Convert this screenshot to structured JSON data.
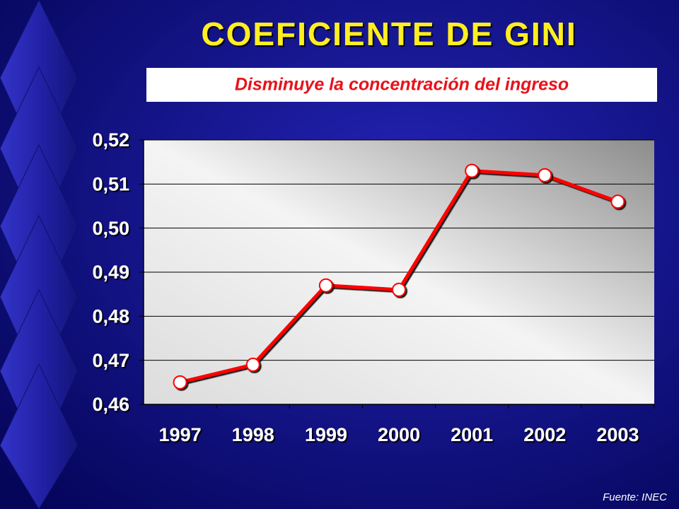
{
  "chart_data": {
    "type": "line",
    "title": "COEFICIENTE DE GINI",
    "subtitle": "Disminuye la concentración del ingreso",
    "source": "Fuente: INEC",
    "categories": [
      "1997",
      "1998",
      "1999",
      "2000",
      "2001",
      "2002",
      "2003"
    ],
    "values": [
      0.465,
      0.469,
      0.487,
      0.486,
      0.513,
      0.512,
      0.506
    ],
    "color": "#ff0000",
    "ylim": [
      0.46,
      0.52
    ],
    "yticks": [
      {
        "value": 0.46,
        "label": "0,46"
      },
      {
        "value": 0.47,
        "label": "0,47"
      },
      {
        "value": 0.48,
        "label": "0,48"
      },
      {
        "value": 0.49,
        "label": "0,49"
      },
      {
        "value": 0.5,
        "label": "0,50"
      },
      {
        "value": 0.51,
        "label": "0,51"
      },
      {
        "value": 0.52,
        "label": "0,52"
      }
    ],
    "grid": true
  }
}
